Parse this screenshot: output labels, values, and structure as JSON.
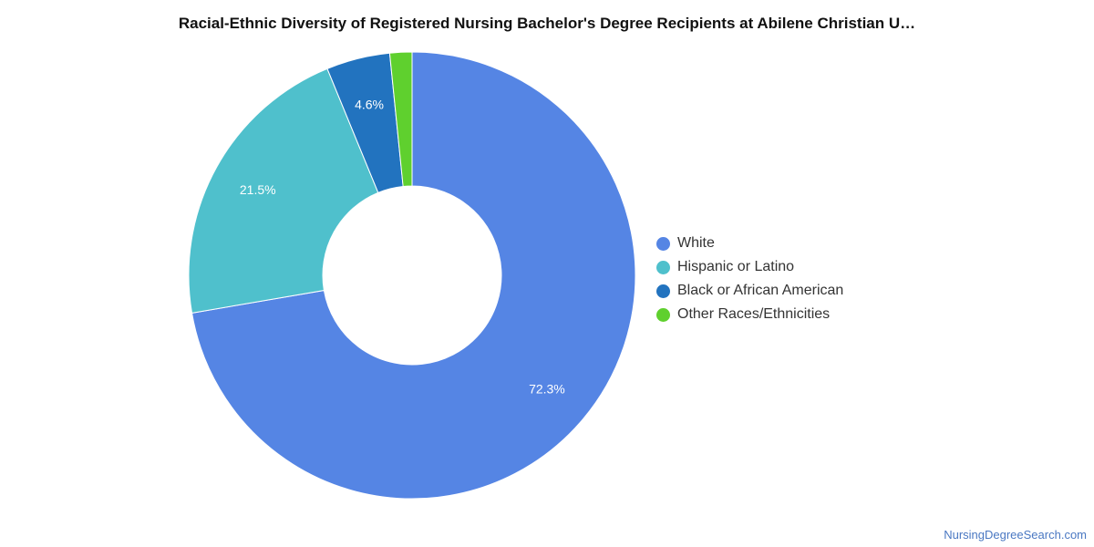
{
  "chart_data": {
    "type": "pie",
    "title": "Racial-Ethnic Diversity of Registered Nursing Bachelor's Degree Recipients at Abilene Christian U…",
    "categories": [
      "White",
      "Hispanic or Latino",
      "Black or African American",
      "Other Races/Ethnicities"
    ],
    "values": [
      72.3,
      21.5,
      4.6,
      1.6
    ],
    "data_labels": [
      "72.3%",
      "21.5%",
      "4.6%",
      ""
    ],
    "colors": [
      "#5585e4",
      "#4fc0cc",
      "#2273bf",
      "#5fd02e"
    ],
    "legend": "right",
    "donut": true
  },
  "source": "NursingDegreeSearch.com"
}
